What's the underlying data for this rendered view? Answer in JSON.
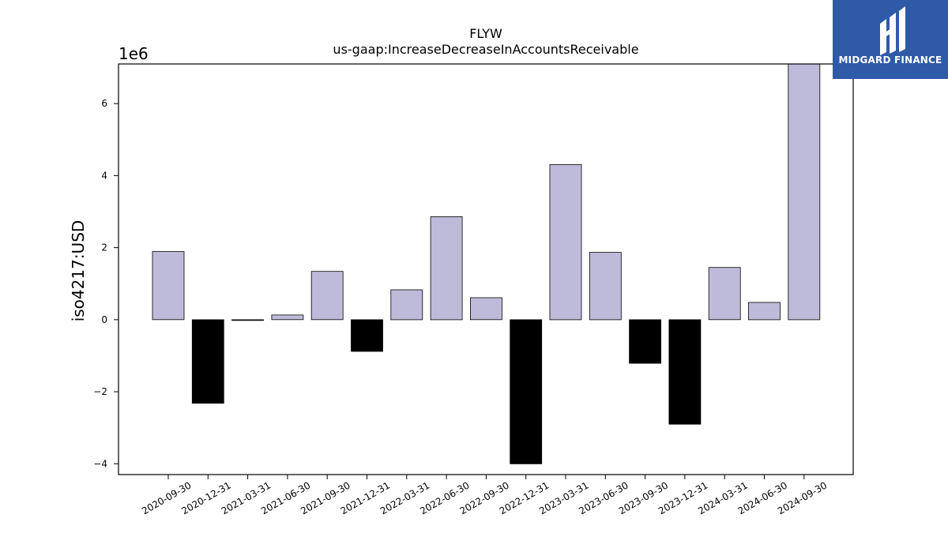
{
  "chart_data": {
    "type": "bar",
    "title": "FLYW",
    "subtitle": "us-gaap:IncreaseDecreaseInAccountsReceivable",
    "ylabel": "iso4217:USD",
    "xlabel": "",
    "scale_label": "1e6",
    "ylim": [
      -4.3,
      7.1
    ],
    "yticks": [
      -4,
      -2,
      0,
      2,
      4,
      6
    ],
    "ytick_labels": [
      "−4",
      "−2",
      "0",
      "2",
      "4",
      "6"
    ],
    "categories": [
      "2020-09-30",
      "2020-12-31",
      "2021-03-31",
      "2021-06-30",
      "2021-09-30",
      "2021-12-31",
      "2022-03-31",
      "2022-06-30",
      "2022-09-30",
      "2022-12-31",
      "2023-03-31",
      "2023-06-30",
      "2023-09-30",
      "2023-12-31",
      "2024-03-31",
      "2024-06-30",
      "2024-09-30"
    ],
    "values": [
      1.89,
      -2.32,
      -0.02,
      0.13,
      1.34,
      -0.88,
      0.83,
      2.86,
      0.61,
      -4.0,
      4.31,
      1.87,
      -1.21,
      -2.9,
      1.45,
      0.48,
      7.1
    ],
    "colors": {
      "positive": "#bebbda",
      "negative": "#000000",
      "edge": "#000000"
    },
    "grid": false,
    "legend": "none"
  },
  "logo": {
    "text": "MIDGARD FINANCE",
    "color": "#2f5aa8"
  }
}
